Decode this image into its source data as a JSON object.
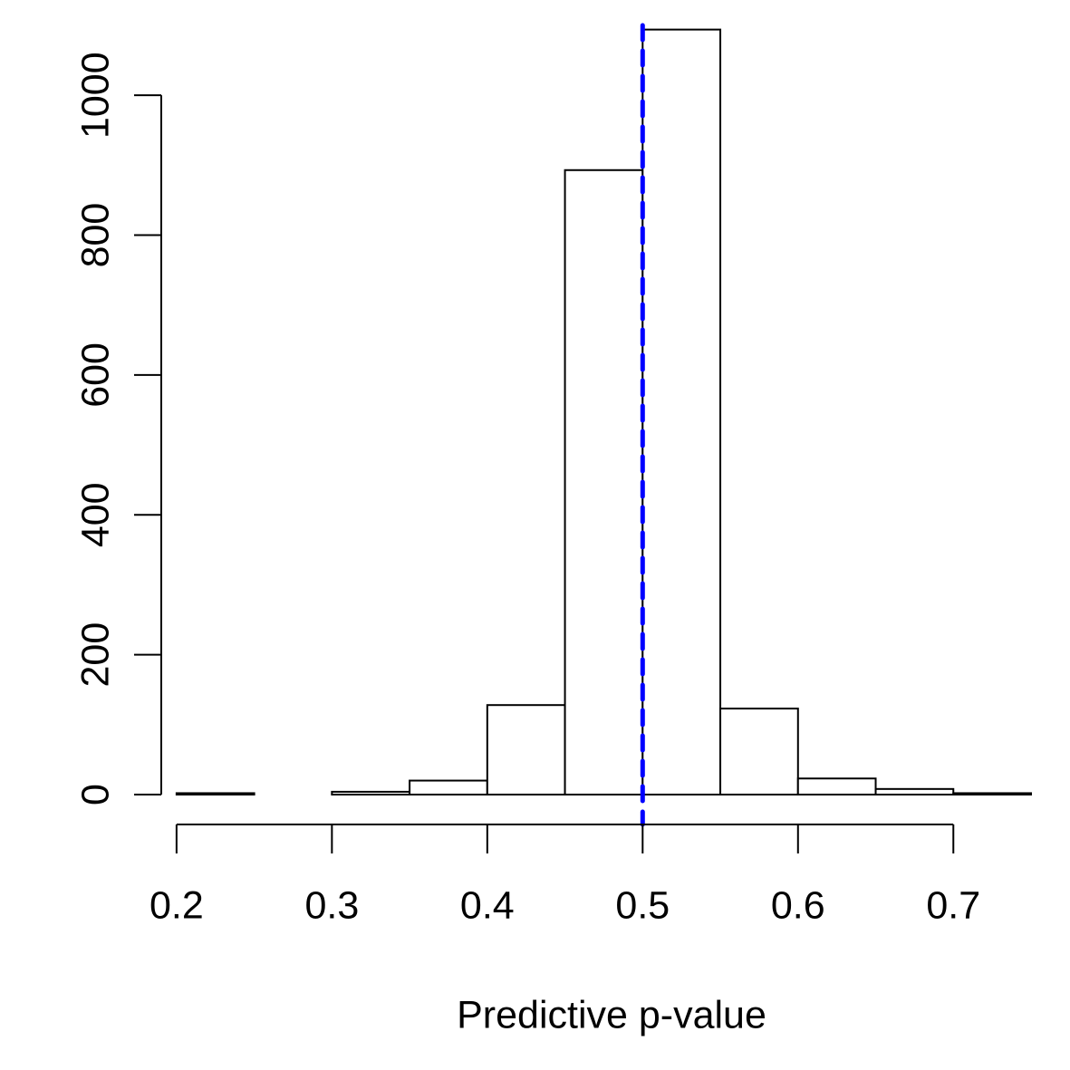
{
  "chart_data": {
    "type": "bar",
    "title": "",
    "xlabel": "Predictive p-value",
    "ylabel": "",
    "x_tick_labels": [
      "0.2",
      "0.3",
      "0.4",
      "0.5",
      "0.6",
      "0.7"
    ],
    "y_tick_labels": [
      "0",
      "200",
      "400",
      "600",
      "800",
      "1000"
    ],
    "x_ticks": [
      0.2,
      0.3,
      0.4,
      0.5,
      0.6,
      0.7
    ],
    "y_ticks": [
      0,
      200,
      400,
      600,
      800,
      1000
    ],
    "xlim": [
      0.175,
      0.75
    ],
    "ylim": [
      0,
      1100
    ],
    "bins": [
      {
        "start": 0.2,
        "end": 0.25,
        "value": 2
      },
      {
        "start": 0.25,
        "end": 0.3,
        "value": 0
      },
      {
        "start": 0.3,
        "end": 0.35,
        "value": 4
      },
      {
        "start": 0.35,
        "end": 0.4,
        "value": 20
      },
      {
        "start": 0.4,
        "end": 0.45,
        "value": 128
      },
      {
        "start": 0.45,
        "end": 0.5,
        "value": 893
      },
      {
        "start": 0.5,
        "end": 0.55,
        "value": 1094
      },
      {
        "start": 0.55,
        "end": 0.6,
        "value": 123
      },
      {
        "start": 0.6,
        "end": 0.65,
        "value": 23
      },
      {
        "start": 0.65,
        "end": 0.7,
        "value": 8
      },
      {
        "start": 0.7,
        "end": 0.75,
        "value": 2
      }
    ],
    "reference_line": {
      "x": 0.5,
      "style": "dashed",
      "color": "#0000ff"
    },
    "bar_fill": "#ffffff",
    "bar_stroke": "#000000",
    "grid": false,
    "legend": "none"
  }
}
